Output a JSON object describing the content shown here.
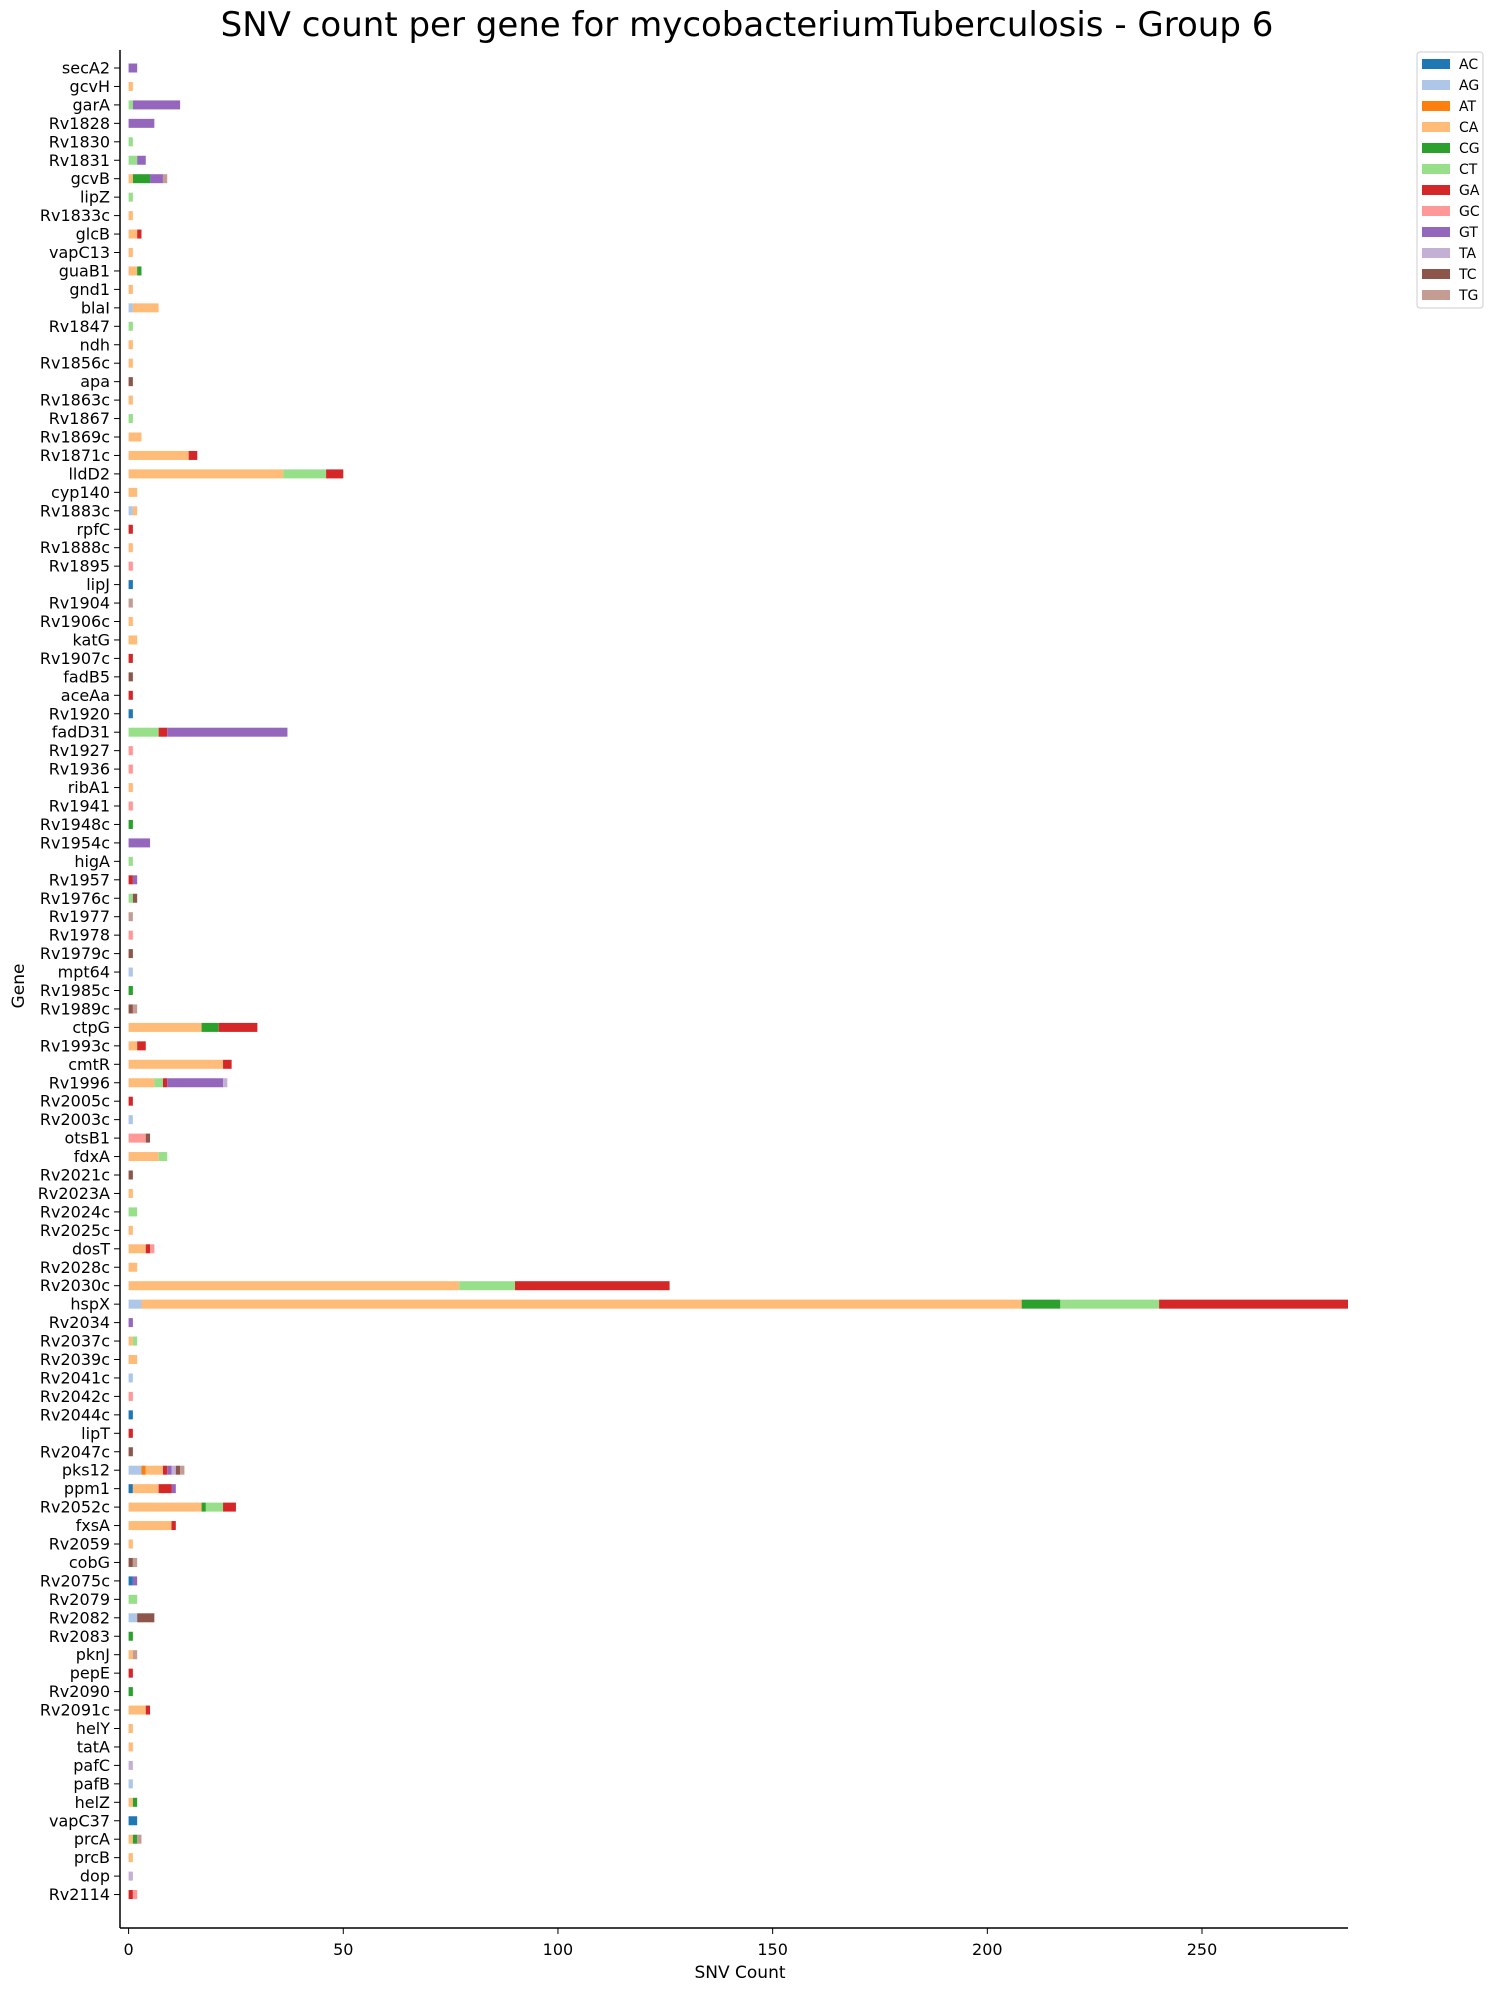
{
  "chart_data": {
    "type": "bar",
    "orientation": "horizontal",
    "stacked": true,
    "title": "SNV count per gene for mycobacteriumTuberculosis - Group 6",
    "xlabel": "SNV Count",
    "ylabel": "Gene",
    "xlim": [
      -2,
      284
    ],
    "xticks": [
      0,
      50,
      100,
      150,
      200,
      250
    ],
    "grid": false,
    "legend_position": "top-right",
    "series": [
      {
        "name": "AC",
        "color": "#1f77b4"
      },
      {
        "name": "AG",
        "color": "#aec7e8"
      },
      {
        "name": "AT",
        "color": "#ff7f0e"
      },
      {
        "name": "CA",
        "color": "#ffbb78"
      },
      {
        "name": "CG",
        "color": "#2ca02c"
      },
      {
        "name": "CT",
        "color": "#98df8a"
      },
      {
        "name": "GA",
        "color": "#d62728"
      },
      {
        "name": "GC",
        "color": "#ff9896"
      },
      {
        "name": "GT",
        "color": "#9467bd"
      },
      {
        "name": "TA",
        "color": "#c5b0d5"
      },
      {
        "name": "TC",
        "color": "#8c564b"
      },
      {
        "name": "TG",
        "color": "#c49c94"
      }
    ],
    "genes": [
      {
        "name": "secA2",
        "counts": {
          "GT": 2
        }
      },
      {
        "name": "gcvH",
        "counts": {
          "CA": 1
        }
      },
      {
        "name": "garA",
        "counts": {
          "CT": 1,
          "GT": 11
        }
      },
      {
        "name": "Rv1828",
        "counts": {
          "GT": 6
        }
      },
      {
        "name": "Rv1830",
        "counts": {
          "CT": 1
        }
      },
      {
        "name": "Rv1831",
        "counts": {
          "CT": 2,
          "GT": 2
        }
      },
      {
        "name": "gcvB",
        "counts": {
          "CG": 4,
          "CA": 1,
          "TG": 1,
          "GT": 3
        }
      },
      {
        "name": "lipZ",
        "counts": {
          "CT": 1
        }
      },
      {
        "name": "Rv1833c",
        "counts": {
          "CA": 1
        }
      },
      {
        "name": "glcB",
        "counts": {
          "CA": 2,
          "GA": 1
        }
      },
      {
        "name": "vapC13",
        "counts": {
          "CA": 1
        }
      },
      {
        "name": "guaB1",
        "counts": {
          "CA": 2,
          "CG": 1
        }
      },
      {
        "name": "gnd1",
        "counts": {
          "CA": 1
        }
      },
      {
        "name": "blaI",
        "counts": {
          "AG": 1,
          "CA": 6
        }
      },
      {
        "name": "Rv1847",
        "counts": {
          "CT": 1
        }
      },
      {
        "name": "ndh",
        "counts": {
          "CA": 1
        }
      },
      {
        "name": "Rv1856c",
        "counts": {
          "CA": 1
        }
      },
      {
        "name": "apa",
        "counts": {
          "TC": 1
        }
      },
      {
        "name": "Rv1863c",
        "counts": {
          "CA": 1
        }
      },
      {
        "name": "Rv1867",
        "counts": {
          "CT": 1
        }
      },
      {
        "name": "Rv1869c",
        "counts": {
          "CA": 3
        }
      },
      {
        "name": "Rv1871c",
        "counts": {
          "CA": 14,
          "GA": 2
        }
      },
      {
        "name": "lldD2",
        "counts": {
          "CA": 36,
          "CT": 10,
          "GA": 4
        }
      },
      {
        "name": "cyp140",
        "counts": {
          "CA": 2
        }
      },
      {
        "name": "Rv1883c",
        "counts": {
          "AG": 1,
          "CA": 1
        }
      },
      {
        "name": "rpfC",
        "counts": {
          "GA": 1
        }
      },
      {
        "name": "Rv1888c",
        "counts": {
          "CA": 1
        }
      },
      {
        "name": "Rv1895",
        "counts": {
          "GC": 1
        }
      },
      {
        "name": "lipJ",
        "counts": {
          "AC": 1
        }
      },
      {
        "name": "Rv1904",
        "counts": {
          "TG": 1
        }
      },
      {
        "name": "Rv1906c",
        "counts": {
          "CA": 1
        }
      },
      {
        "name": "katG",
        "counts": {
          "CA": 2
        }
      },
      {
        "name": "Rv1907c",
        "counts": {
          "GA": 1
        }
      },
      {
        "name": "fadB5",
        "counts": {
          "TC": 1
        }
      },
      {
        "name": "aceAa",
        "counts": {
          "GA": 1
        }
      },
      {
        "name": "Rv1920",
        "counts": {
          "AC": 1
        }
      },
      {
        "name": "fadD31",
        "counts": {
          "CT": 7,
          "GA": 2,
          "GT": 28
        }
      },
      {
        "name": "Rv1927",
        "counts": {
          "GC": 1
        }
      },
      {
        "name": "Rv1936",
        "counts": {
          "GC": 1
        }
      },
      {
        "name": "ribA1",
        "counts": {
          "CA": 1
        }
      },
      {
        "name": "Rv1941",
        "counts": {
          "GC": 1
        }
      },
      {
        "name": "Rv1948c",
        "counts": {
          "CG": 1
        }
      },
      {
        "name": "Rv1954c",
        "counts": {
          "GT": 5
        }
      },
      {
        "name": "higA",
        "counts": {
          "CT": 1
        }
      },
      {
        "name": "Rv1957",
        "counts": {
          "GA": 1,
          "GT": 1
        }
      },
      {
        "name": "Rv1976c",
        "counts": {
          "CT": 1,
          "TC": 1
        }
      },
      {
        "name": "Rv1977",
        "counts": {
          "TG": 1
        }
      },
      {
        "name": "Rv1978",
        "counts": {
          "GC": 1
        }
      },
      {
        "name": "Rv1979c",
        "counts": {
          "TC": 1
        }
      },
      {
        "name": "mpt64",
        "counts": {
          "AG": 1
        }
      },
      {
        "name": "Rv1985c",
        "counts": {
          "CG": 1
        }
      },
      {
        "name": "Rv1989c",
        "counts": {
          "TG": 1,
          "TC": 1
        }
      },
      {
        "name": "ctpG",
        "counts": {
          "CA": 17,
          "CG": 4,
          "GA": 9
        }
      },
      {
        "name": "Rv1993c",
        "counts": {
          "CA": 2,
          "GA": 2
        }
      },
      {
        "name": "cmtR",
        "counts": {
          "CA": 22,
          "GA": 2
        }
      },
      {
        "name": "Rv1996",
        "counts": {
          "CA": 6,
          "CT": 2,
          "GA": 1,
          "GT": 13,
          "TA": 1
        }
      },
      {
        "name": "Rv2005c",
        "counts": {
          "GA": 1
        }
      },
      {
        "name": "Rv2003c",
        "counts": {
          "AG": 1
        }
      },
      {
        "name": "otsB1",
        "counts": {
          "GC": 4,
          "TC": 1
        }
      },
      {
        "name": "fdxA",
        "counts": {
          "CA": 7,
          "CT": 2
        }
      },
      {
        "name": "Rv2021c",
        "counts": {
          "TC": 1
        }
      },
      {
        "name": "Rv2023A",
        "counts": {
          "CA": 1
        }
      },
      {
        "name": "Rv2024c",
        "counts": {
          "CT": 2
        }
      },
      {
        "name": "Rv2025c",
        "counts": {
          "CA": 1
        }
      },
      {
        "name": "dosT",
        "counts": {
          "CA": 4,
          "GA": 1,
          "GC": 1
        }
      },
      {
        "name": "Rv2028c",
        "counts": {
          "CA": 2
        }
      },
      {
        "name": "Rv2030c",
        "counts": {
          "CA": 77,
          "CT": 13,
          "GA": 36
        }
      },
      {
        "name": "hspX",
        "counts": {
          "AG": 3,
          "CA": 205,
          "CG": 9,
          "CT": 23,
          "GA": 44
        }
      },
      {
        "name": "Rv2034",
        "counts": {
          "GT": 1
        }
      },
      {
        "name": "Rv2037c",
        "counts": {
          "CT": 1,
          "CA": 1
        }
      },
      {
        "name": "Rv2039c",
        "counts": {
          "CA": 2
        }
      },
      {
        "name": "Rv2041c",
        "counts": {
          "AG": 1
        }
      },
      {
        "name": "Rv2042c",
        "counts": {
          "GC": 1
        }
      },
      {
        "name": "Rv2044c",
        "counts": {
          "AC": 1
        }
      },
      {
        "name": "lipT",
        "counts": {
          "GA": 1
        }
      },
      {
        "name": "Rv2047c",
        "counts": {
          "TC": 1
        }
      },
      {
        "name": "pks12",
        "counts": {
          "AG": 3,
          "AT": 1,
          "CA": 4,
          "GA": 1,
          "GT": 1,
          "TA": 1,
          "TC": 1,
          "TG": 1
        }
      },
      {
        "name": "ppm1",
        "counts": {
          "AC": 1,
          "CA": 6,
          "GA": 3,
          "GT": 1
        }
      },
      {
        "name": "Rv2052c",
        "counts": {
          "CA": 17,
          "CG": 1,
          "CT": 4,
          "GA": 3
        }
      },
      {
        "name": "fxsA",
        "counts": {
          "CA": 10,
          "GA": 1
        }
      },
      {
        "name": "Rv2059",
        "counts": {
          "CA": 1
        }
      },
      {
        "name": "cobG",
        "counts": {
          "TG": 1,
          "TC": 1
        }
      },
      {
        "name": "Rv2075c",
        "counts": {
          "AC": 1,
          "GT": 1
        }
      },
      {
        "name": "Rv2079",
        "counts": {
          "CT": 2
        }
      },
      {
        "name": "Rv2082",
        "counts": {
          "AG": 2,
          "TC": 4
        }
      },
      {
        "name": "Rv2083",
        "counts": {
          "CG": 1
        }
      },
      {
        "name": "pknJ",
        "counts": {
          "CA": 1,
          "TG": 1
        }
      },
      {
        "name": "pepE",
        "counts": {
          "GA": 1
        }
      },
      {
        "name": "Rv2090",
        "counts": {
          "CG": 1
        }
      },
      {
        "name": "Rv2091c",
        "counts": {
          "CA": 4,
          "GA": 1
        }
      },
      {
        "name": "helY",
        "counts": {
          "CA": 1
        }
      },
      {
        "name": "tatA",
        "counts": {
          "CA": 1
        }
      },
      {
        "name": "pafC",
        "counts": {
          "TA": 1
        }
      },
      {
        "name": "pafB",
        "counts": {
          "AG": 1
        }
      },
      {
        "name": "helZ",
        "counts": {
          "CA": 1,
          "CG": 1
        }
      },
      {
        "name": "vapC37",
        "counts": {
          "AC": 2
        }
      },
      {
        "name": "prcA",
        "counts": {
          "CA": 1,
          "CG": 1,
          "TG": 1
        }
      },
      {
        "name": "prcB",
        "counts": {
          "CA": 1
        }
      },
      {
        "name": "dop",
        "counts": {
          "TA": 1
        }
      },
      {
        "name": "Rv2114",
        "counts": {
          "GC": 1,
          "GA": 1
        }
      }
    ]
  }
}
